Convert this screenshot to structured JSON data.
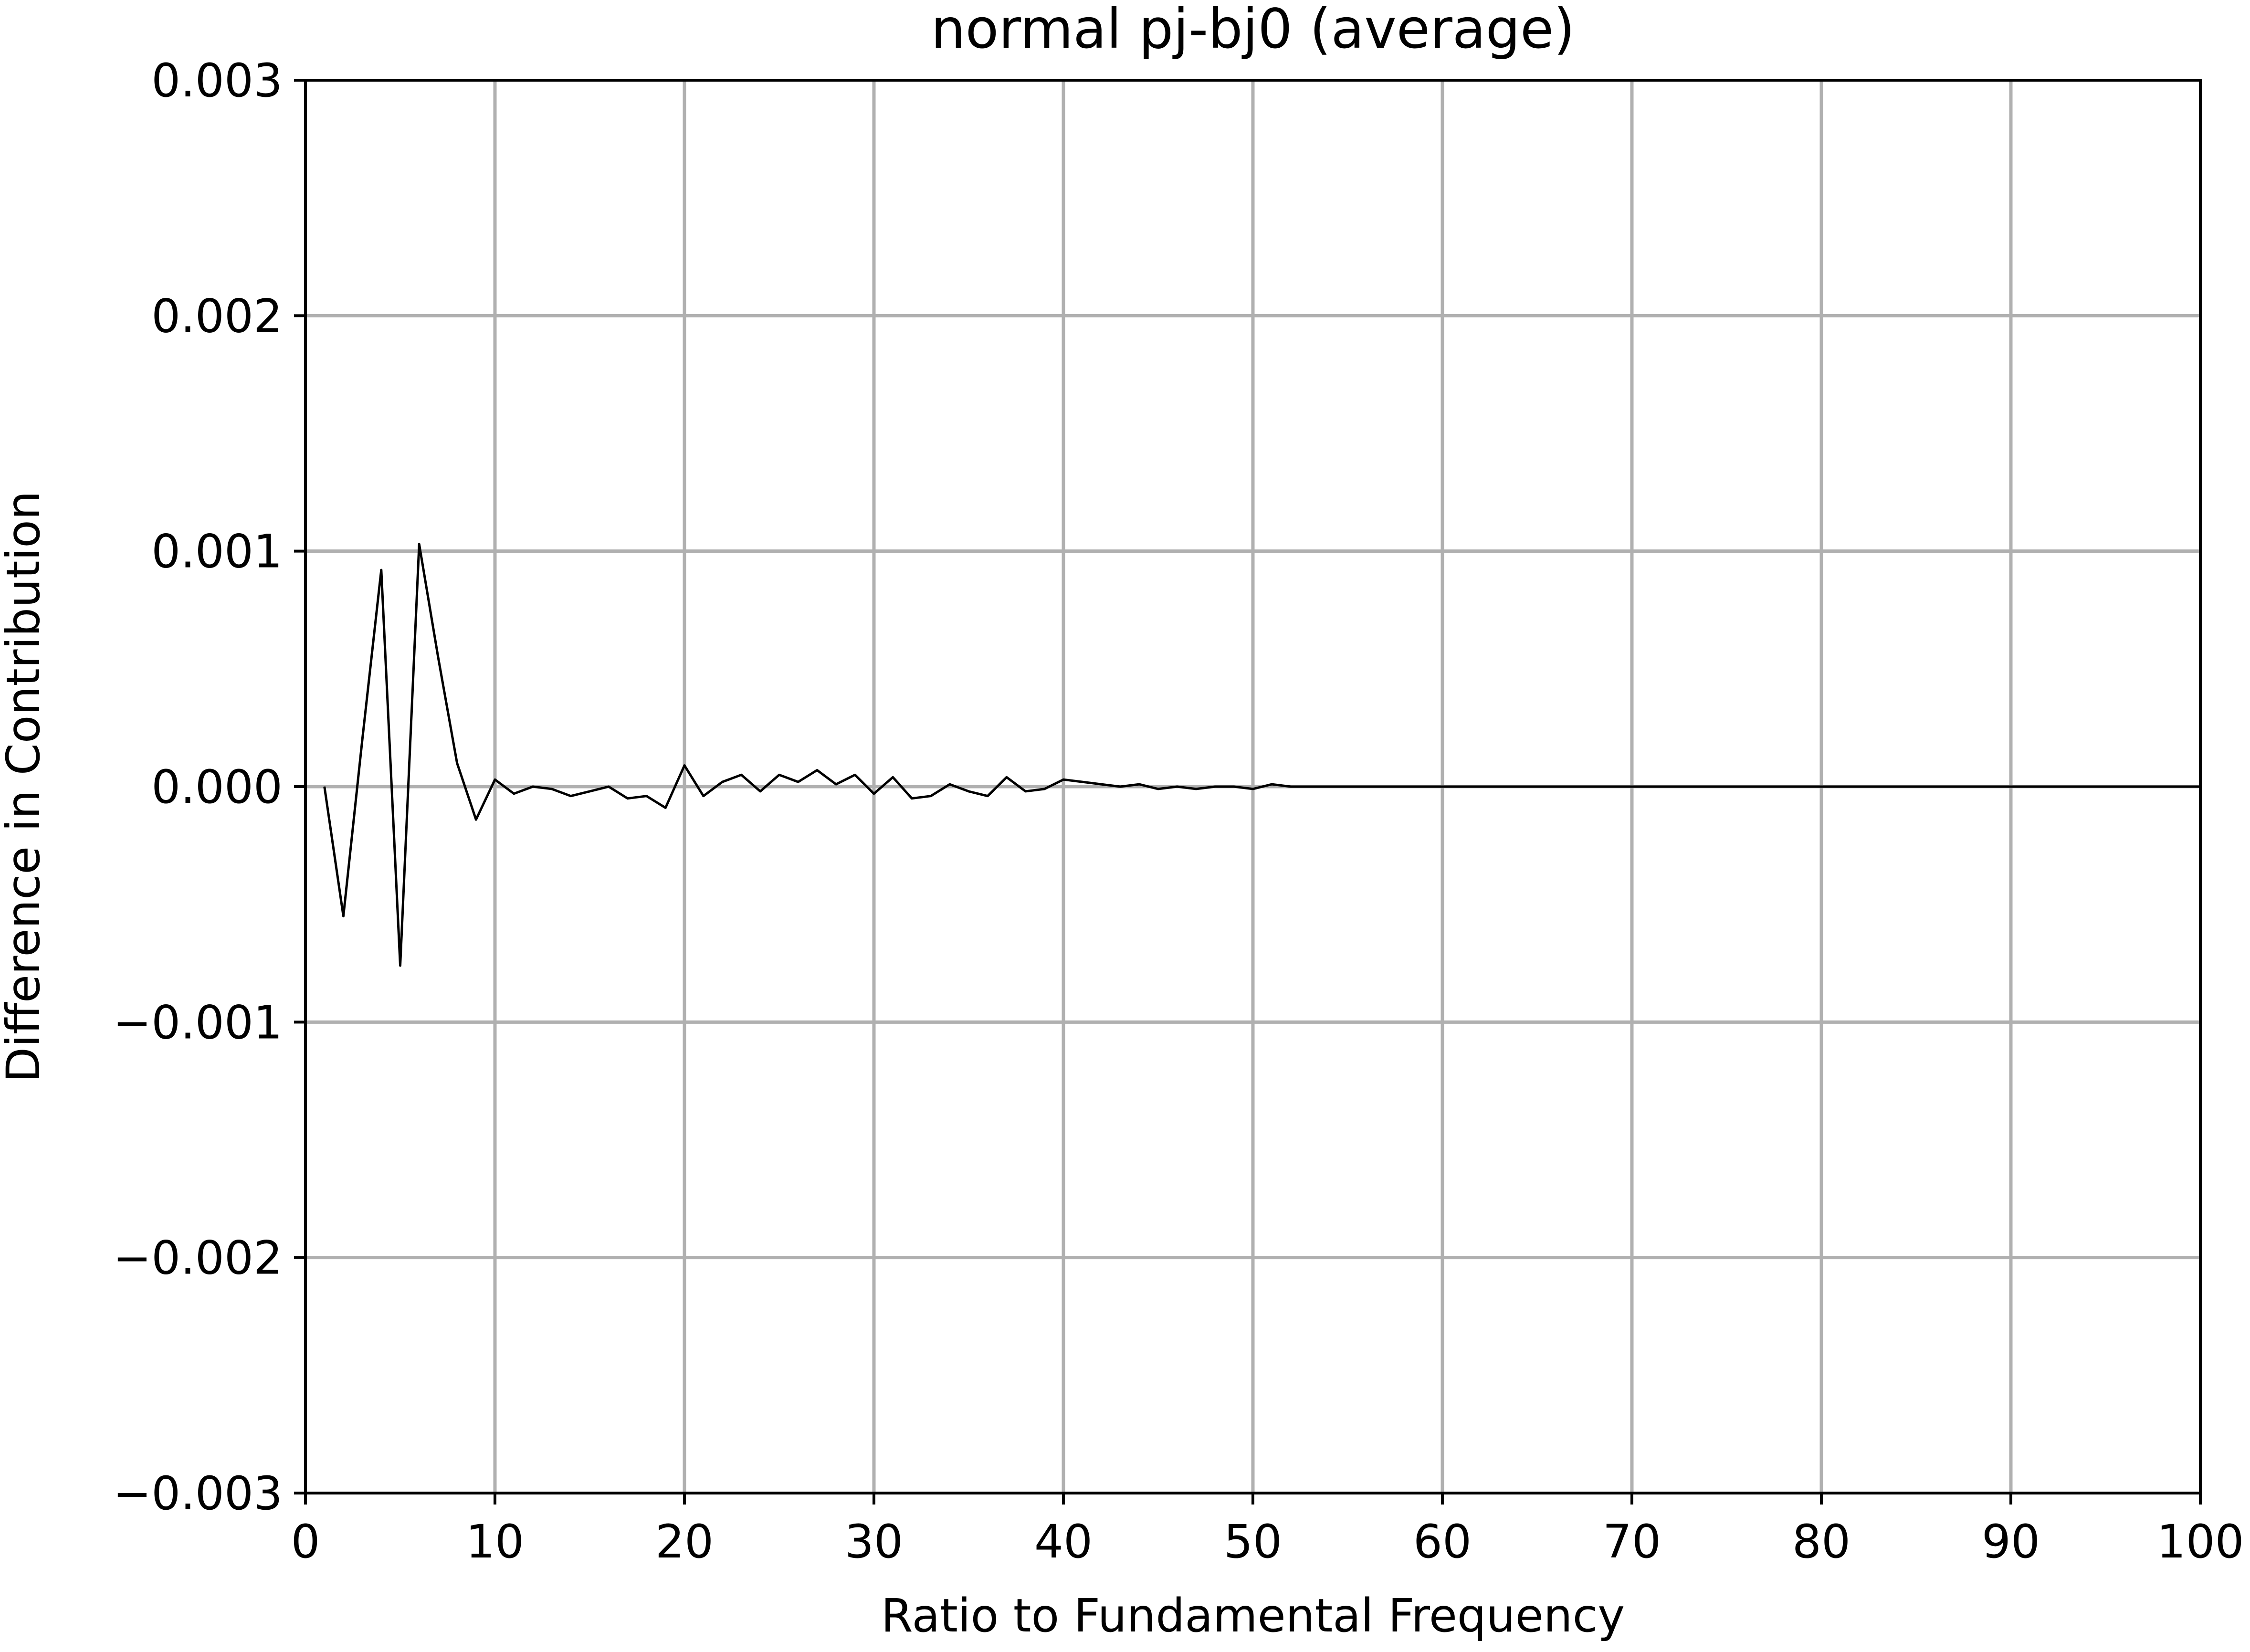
{
  "chart_data": {
    "type": "line",
    "title": "normal pj-bj0 (average)",
    "xlabel": "Ratio to Fundamental Frequency",
    "ylabel": "Difference in Contribution",
    "xlim": [
      0,
      100
    ],
    "ylim": [
      -0.003,
      0.003
    ],
    "x_ticks": [
      {
        "value": 0,
        "label": "0"
      },
      {
        "value": 10,
        "label": "10"
      },
      {
        "value": 20,
        "label": "20"
      },
      {
        "value": 30,
        "label": "30"
      },
      {
        "value": 40,
        "label": "40"
      },
      {
        "value": 50,
        "label": "50"
      },
      {
        "value": 60,
        "label": "60"
      },
      {
        "value": 70,
        "label": "70"
      },
      {
        "value": 80,
        "label": "80"
      },
      {
        "value": 90,
        "label": "90"
      },
      {
        "value": 100,
        "label": "100"
      }
    ],
    "y_ticks": [
      {
        "value": 0.003,
        "label": "0.003"
      },
      {
        "value": 0.002,
        "label": "0.002"
      },
      {
        "value": 0.001,
        "label": "0.001"
      },
      {
        "value": 0.0,
        "label": "0.000"
      },
      {
        "value": -0.001,
        "label": "−0.001"
      },
      {
        "value": -0.002,
        "label": "−0.002"
      },
      {
        "value": -0.003,
        "label": "−0.003"
      }
    ],
    "grid": true,
    "series_color": "#000000",
    "grid_color": "#b0b0b0",
    "series": [
      {
        "x": [
          1,
          2,
          3,
          4,
          5,
          6,
          7,
          8,
          9,
          10,
          11,
          12,
          13,
          14,
          15,
          16,
          17,
          18,
          19,
          20,
          21,
          22,
          23,
          24,
          25,
          26,
          27,
          28,
          29,
          30,
          31,
          32,
          33,
          34,
          35,
          36,
          37,
          38,
          39,
          40,
          41,
          42,
          43,
          44,
          45,
          46,
          47,
          48,
          49,
          50,
          51,
          52,
          53,
          54,
          55,
          56,
          57,
          58,
          59,
          60,
          61,
          62,
          63,
          64,
          65,
          66,
          67,
          68,
          69,
          70,
          71,
          72,
          73,
          74,
          75,
          76,
          77,
          78,
          79,
          80,
          81,
          82,
          83,
          84,
          85,
          86,
          87,
          88,
          89,
          90,
          91,
          92,
          93,
          94,
          95,
          96,
          97,
          98,
          99,
          100
        ],
        "values": [
          0.0,
          -0.00055,
          0.0002,
          0.00092,
          -0.00076,
          0.00103,
          0.00055,
          0.0001,
          -0.00014,
          3e-05,
          -3e-05,
          0.0,
          -1e-05,
          -4e-05,
          -2e-05,
          0.0,
          -5e-05,
          -4e-05,
          -9e-05,
          9e-05,
          -4e-05,
          2e-05,
          5e-05,
          -2e-05,
          5e-05,
          2e-05,
          7e-05,
          1e-05,
          5e-05,
          -3e-05,
          4e-05,
          -5e-05,
          -4e-05,
          1e-05,
          -2e-05,
          -4e-05,
          4e-05,
          -2e-05,
          -1e-05,
          3e-05,
          2e-05,
          1e-05,
          0.0,
          1e-05,
          -1e-05,
          0.0,
          -1e-05,
          0.0,
          0.0,
          -1e-05,
          1e-05,
          0.0,
          0.0,
          0.0,
          0.0,
          0.0,
          0.0,
          0.0,
          0.0,
          0.0,
          0.0,
          0.0,
          0.0,
          0.0,
          0.0,
          0.0,
          0.0,
          0.0,
          0.0,
          0.0,
          0.0,
          0.0,
          0.0,
          0.0,
          0.0,
          0.0,
          0.0,
          0.0,
          0.0,
          0.0,
          0.0,
          0.0,
          0.0,
          0.0,
          0.0,
          0.0,
          0.0,
          0.0,
          0.0,
          0.0,
          0.0,
          0.0,
          0.0,
          0.0,
          0.0,
          0.0,
          0.0,
          0.0,
          0.0,
          0.0
        ]
      }
    ]
  }
}
